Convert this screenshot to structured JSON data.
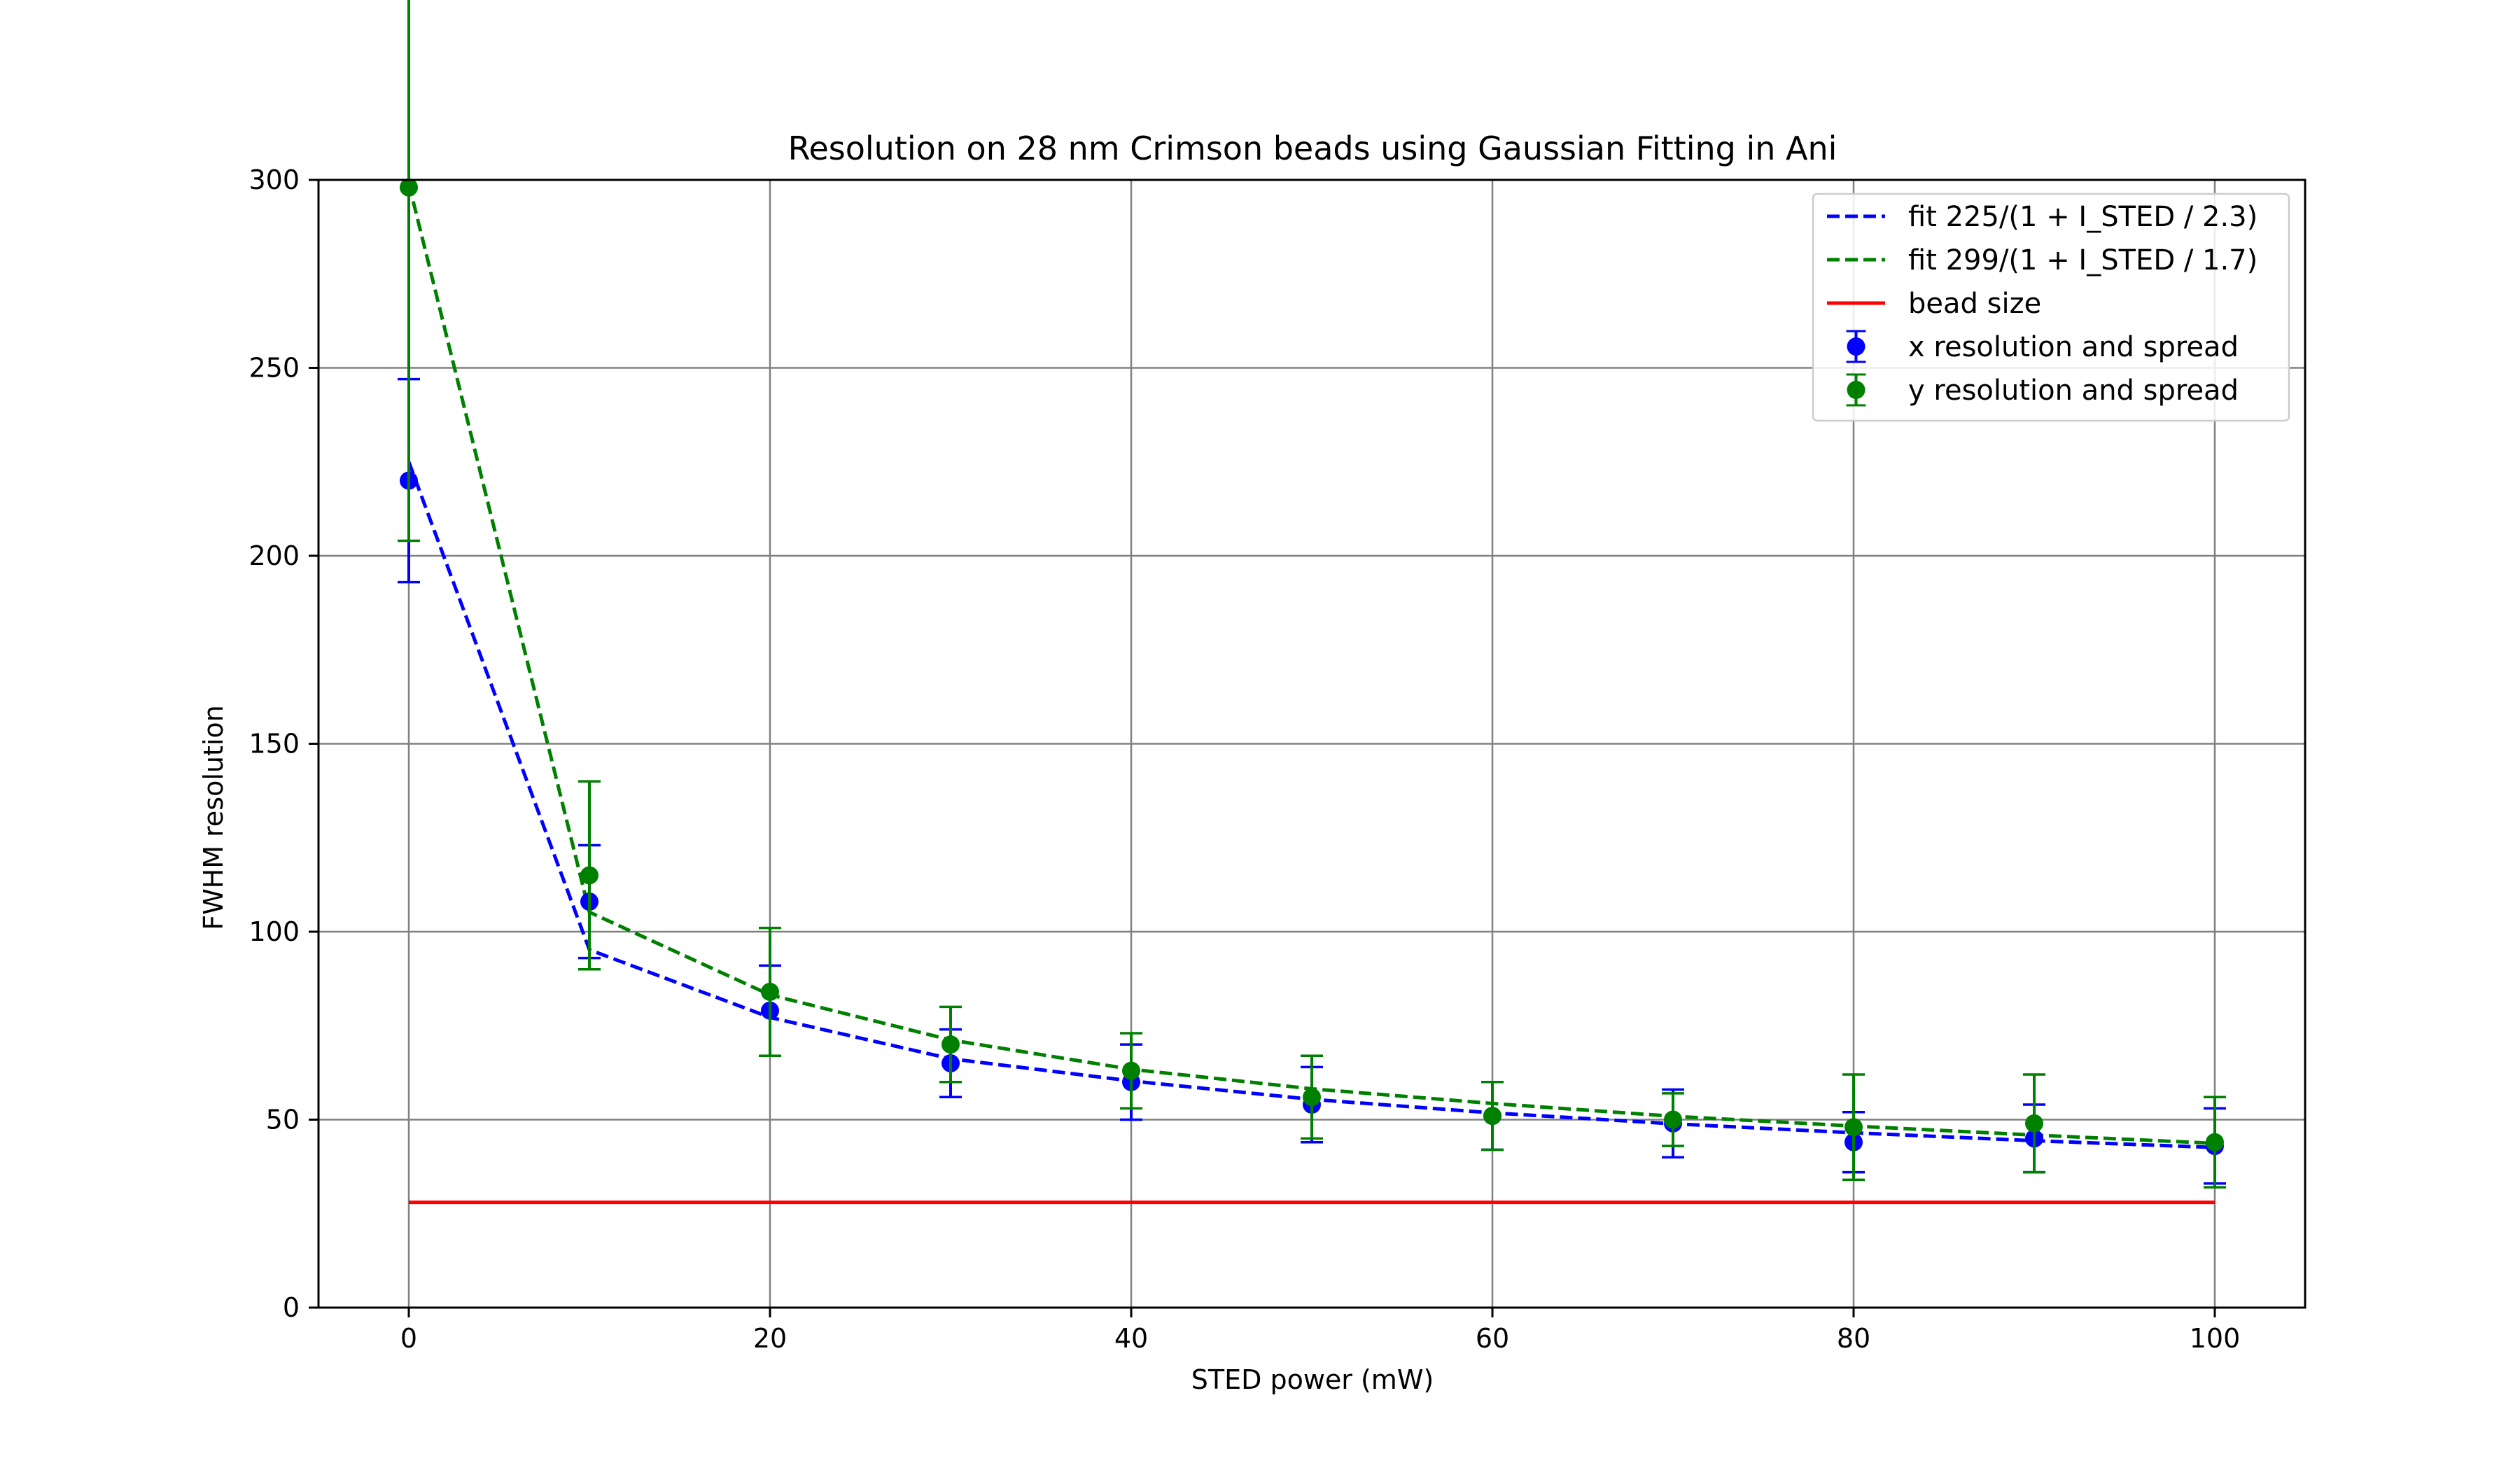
{
  "chart_data": {
    "type": "line",
    "title": "Resolution on 28 nm Crimson beads using Gaussian Fitting in Ani",
    "xlabel": "STED power (mW)",
    "ylabel": "FWHM resolution",
    "xlim": [
      -5,
      105
    ],
    "ylim": [
      0,
      300
    ],
    "xticks": [
      0,
      20,
      40,
      60,
      80,
      100
    ],
    "yticks": [
      0,
      50,
      100,
      150,
      200,
      250,
      300
    ],
    "grid": true,
    "legend_position": "top-right",
    "x": [
      0,
      10,
      20,
      30,
      40,
      50,
      60,
      70,
      80,
      90,
      100
    ],
    "series": [
      {
        "name": "fit 225/(1 + I_STED / 2.3)",
        "kind": "line",
        "style": "dashed",
        "color": "#0000ff",
        "values": [
          225,
          95.2,
          77.2,
          66.2,
          60.3,
          55.4,
          51.8,
          48.9,
          46.5,
          44.4,
          42.6
        ]
      },
      {
        "name": "fit 299/(1 + I_STED / 1.7)",
        "kind": "line",
        "style": "dashed",
        "color": "#008000",
        "values": [
          299,
          105.2,
          83.2,
          71.2,
          63.4,
          58.2,
          54.3,
          50.9,
          48.3,
          45.9,
          43.7
        ]
      },
      {
        "name": "bead size",
        "kind": "line",
        "style": "solid",
        "color": "#ff0000",
        "x": [
          0,
          100
        ],
        "values": [
          28,
          28
        ]
      },
      {
        "name": "x resolution and spread",
        "kind": "errorbar",
        "color": "#0000ff",
        "values": [
          220,
          108,
          79,
          65,
          60,
          54,
          51,
          49,
          44,
          45,
          43
        ],
        "errors": [
          27,
          15,
          12,
          9,
          10,
          10,
          9,
          9,
          8,
          9,
          10
        ]
      },
      {
        "name": "y resolution and spread",
        "kind": "errorbar",
        "color": "#008000",
        "values": [
          298,
          115,
          84,
          70,
          63,
          56,
          51,
          50,
          48,
          49,
          44
        ],
        "errors": [
          94,
          25,
          17,
          10,
          10,
          11,
          9,
          7,
          14,
          13,
          12
        ]
      }
    ]
  }
}
